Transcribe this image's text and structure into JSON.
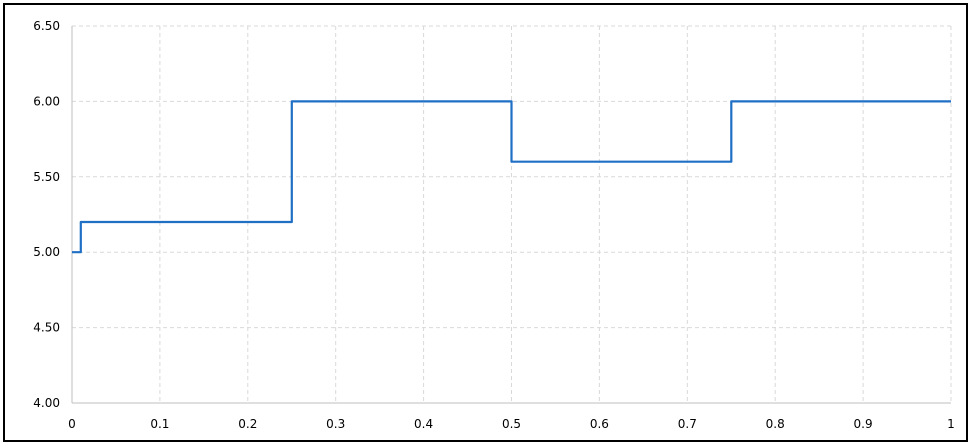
{
  "chart_data": {
    "type": "line",
    "title": "",
    "xlabel": "",
    "ylabel": "",
    "xlim": [
      0,
      1
    ],
    "ylim": [
      4.0,
      6.5
    ],
    "x_ticks": [
      "0",
      "0.1",
      "0.2",
      "0.3",
      "0.4",
      "0.5",
      "0.6",
      "0.7",
      "0.8",
      "0.9",
      "1"
    ],
    "y_ticks": [
      "4.00",
      "4.50",
      "5.00",
      "5.50",
      "6.00",
      "6.50"
    ],
    "grid": true,
    "legend": "none",
    "series": [
      {
        "color": "#1f6fc5",
        "x": [
          0,
          0.01,
          0.01,
          0.25,
          0.25,
          0.5,
          0.5,
          0.75,
          0.75,
          1.0
        ],
        "y": [
          5.0,
          5.0,
          5.2,
          5.2,
          6.0,
          6.0,
          5.6,
          5.6,
          6.0,
          6.0
        ]
      }
    ]
  }
}
